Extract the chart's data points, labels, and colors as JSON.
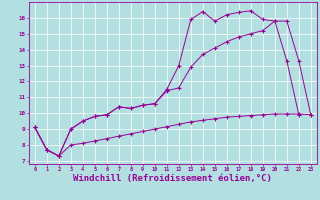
{
  "background_color": "#b2e0e0",
  "line_color": "#990099",
  "grid_color": "#ffffff",
  "xlabel": "Windchill (Refroidissement éolien,°C)",
  "xlabel_fontsize": 6.5,
  "xtick_labels": [
    "0",
    "1",
    "2",
    "3",
    "4",
    "5",
    "6",
    "7",
    "8",
    "9",
    "10",
    "11",
    "12",
    "13",
    "14",
    "15",
    "16",
    "17",
    "18",
    "19",
    "20",
    "21",
    "22",
    "23"
  ],
  "ytick_labels": [
    "7",
    "8",
    "9",
    "10",
    "11",
    "12",
    "13",
    "14",
    "15",
    "16"
  ],
  "ylim": [
    6.8,
    17.0
  ],
  "xlim": [
    -0.5,
    23.5
  ],
  "line1_x": [
    0,
    1,
    2,
    3,
    4,
    5,
    6,
    7,
    8,
    9,
    10,
    11,
    12,
    13,
    14,
    15,
    16,
    17,
    18,
    19,
    20,
    21,
    22
  ],
  "line1_y": [
    9.1,
    7.7,
    7.3,
    9.0,
    9.5,
    9.8,
    9.9,
    10.4,
    10.3,
    10.5,
    10.6,
    11.5,
    13.0,
    15.9,
    16.4,
    15.8,
    16.2,
    16.35,
    16.45,
    15.9,
    15.8,
    13.3,
    9.9
  ],
  "line2_x": [
    0,
    1,
    2,
    3,
    4,
    5,
    6,
    7,
    8,
    9,
    10,
    11,
    12,
    13,
    14,
    15,
    16,
    17,
    18,
    19,
    20,
    21,
    22,
    23
  ],
  "line2_y": [
    9.1,
    7.7,
    7.3,
    9.0,
    9.5,
    9.8,
    9.9,
    10.4,
    10.3,
    10.5,
    10.6,
    11.4,
    11.6,
    12.9,
    13.7,
    14.1,
    14.5,
    14.8,
    15.0,
    15.2,
    15.8,
    15.8,
    13.3,
    9.9
  ],
  "line3_x": [
    0,
    1,
    2,
    3,
    4,
    5,
    6,
    7,
    8,
    9,
    10,
    11,
    12,
    13,
    14,
    15,
    16,
    17,
    18,
    19,
    20,
    21,
    22,
    23
  ],
  "line3_y": [
    9.1,
    7.7,
    7.3,
    8.0,
    8.1,
    8.25,
    8.4,
    8.55,
    8.7,
    8.85,
    9.0,
    9.15,
    9.3,
    9.45,
    9.55,
    9.65,
    9.75,
    9.8,
    9.85,
    9.9,
    9.95,
    9.95,
    9.95,
    9.9
  ]
}
